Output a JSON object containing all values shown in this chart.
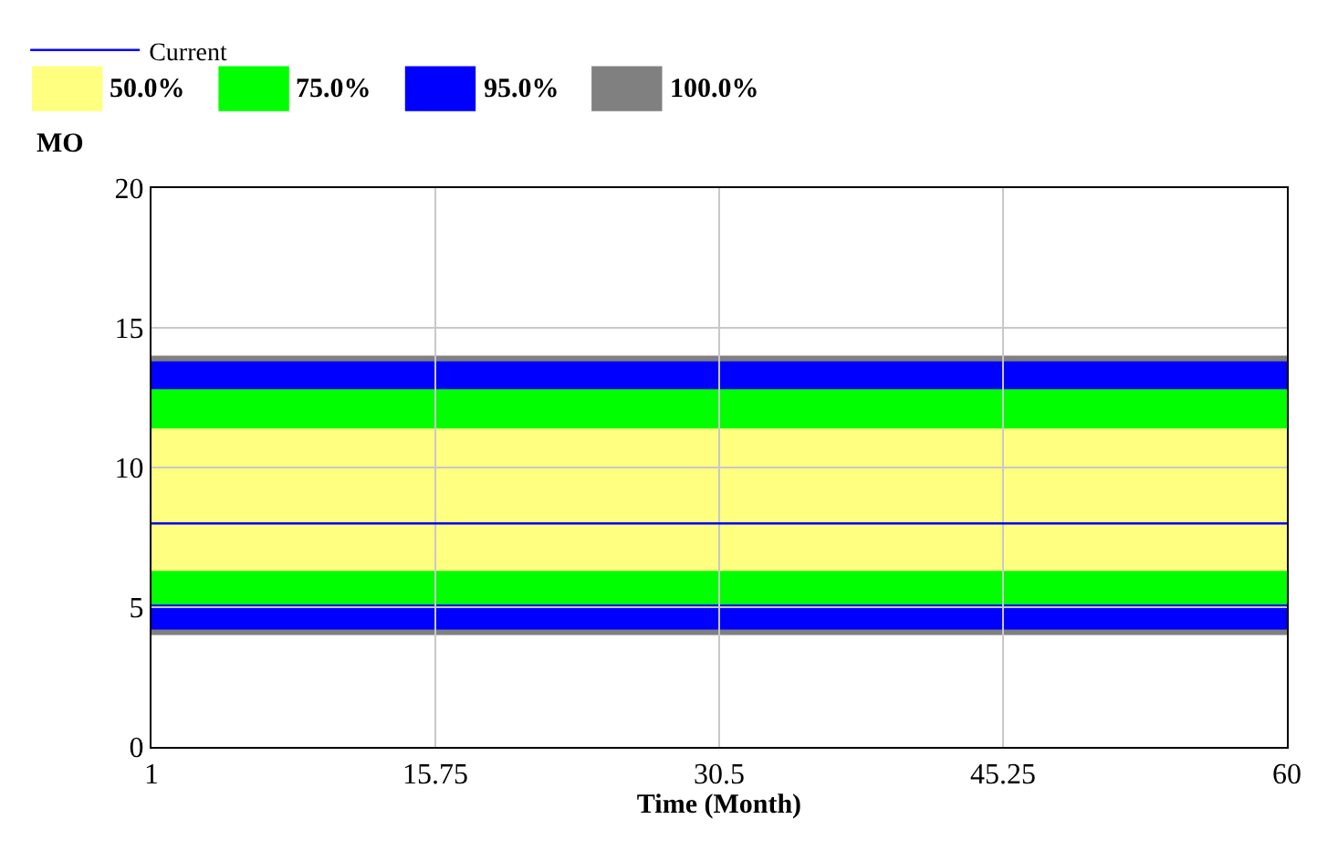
{
  "chart_data": {
    "type": "line",
    "xlabel": "Time (Month)",
    "ylabel": "MO",
    "x": [
      1,
      60
    ],
    "xlim": [
      1,
      60
    ],
    "xticks": [
      1,
      15.75,
      30.5,
      45.25,
      60
    ],
    "ylim": [
      0,
      20
    ],
    "yticks": [
      0,
      5,
      10,
      15,
      20
    ],
    "grid": true,
    "legend": "top left",
    "series": [
      {
        "name": "Current",
        "color": "#0000ff",
        "values": [
          8.0,
          8.0
        ]
      }
    ],
    "bands": [
      {
        "axis": "y",
        "from": 6.3,
        "to": 11.4,
        "label": "50.0%",
        "color": "#ffff80"
      },
      {
        "axis": "y",
        "from": 5.1,
        "to": 12.8,
        "label": "75.0%",
        "color": "#00ff00"
      },
      {
        "axis": "y",
        "from": 4.2,
        "to": 13.8,
        "label": "95.0%",
        "color": "#0000ff"
      },
      {
        "axis": "y",
        "from": 4.0,
        "to": 14.0,
        "label": "100.0%",
        "color": "#808080"
      }
    ]
  }
}
